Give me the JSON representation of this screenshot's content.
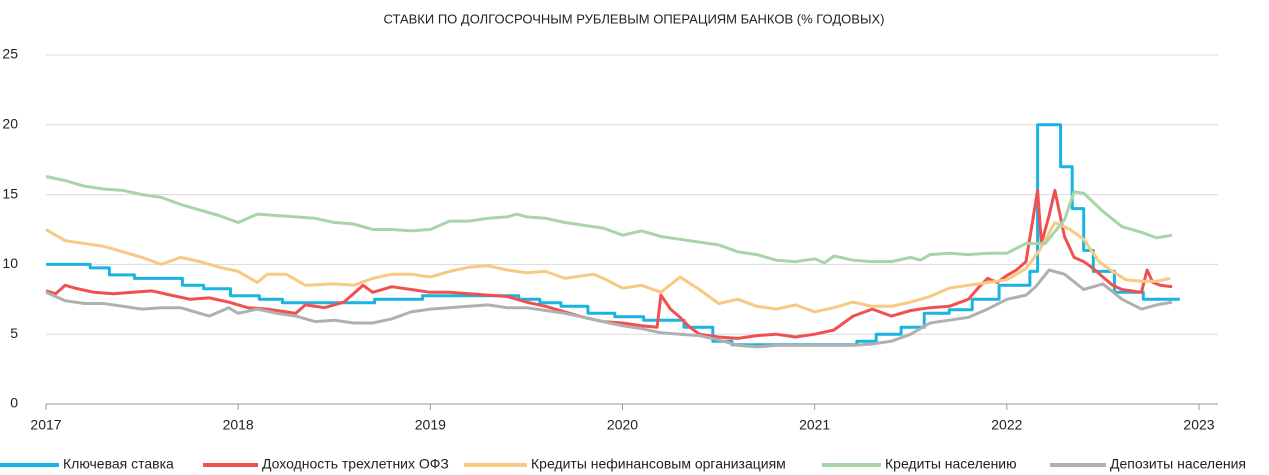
{
  "chart_data": {
    "type": "line",
    "title": "СТАВКИ ПО ДОЛГОСРОЧНЫМ РУБЛЕВЫМ ОПЕРАЦИЯМ БАНКОВ (% ГОДОВЫХ)",
    "xlim": [
      2017,
      2023
    ],
    "xticks": [
      2017,
      2018,
      2019,
      2020,
      2021,
      2022,
      2023
    ],
    "ylim": [
      0,
      25
    ],
    "yticks": [
      0,
      5,
      10,
      15,
      20,
      25
    ],
    "grid": true,
    "legend": "bottom",
    "series": [
      {
        "name": "Ключевая ставка",
        "color": "#1ab4e0",
        "x": [
          2017,
          2017.23,
          2017.23,
          2017.33,
          2017.33,
          2017.46,
          2017.46,
          2017.71,
          2017.71,
          2017.82,
          2017.82,
          2017.96,
          2017.96,
          2018.11,
          2018.11,
          2018.23,
          2018.23,
          2018.71,
          2018.71,
          2018.96,
          2018.96,
          2019.46,
          2019.46,
          2019.57,
          2019.57,
          2019.68,
          2019.68,
          2019.82,
          2019.82,
          2019.96,
          2019.96,
          2020.11,
          2020.11,
          2020.32,
          2020.32,
          2020.47,
          2020.47,
          2020.57,
          2020.57,
          2021.22,
          2021.22,
          2021.32,
          2021.32,
          2021.45,
          2021.45,
          2021.57,
          2021.57,
          2021.7,
          2021.7,
          2021.82,
          2021.82,
          2021.96,
          2021.96,
          2022.12,
          2022.12,
          2022.16,
          2022.16,
          2022.28,
          2022.28,
          2022.34,
          2022.34,
          2022.4,
          2022.4,
          2022.45,
          2022.45,
          2022.56,
          2022.56,
          2022.71,
          2022.71,
          2022.9
        ],
        "values": [
          10,
          10,
          9.75,
          9.75,
          9.25,
          9.25,
          9,
          9,
          8.5,
          8.5,
          8.25,
          8.25,
          7.75,
          7.75,
          7.5,
          7.5,
          7.25,
          7.25,
          7.5,
          7.5,
          7.75,
          7.75,
          7.5,
          7.5,
          7.25,
          7.25,
          7,
          7,
          6.5,
          6.5,
          6.25,
          6.25,
          6,
          6,
          5.5,
          5.5,
          4.5,
          4.5,
          4.25,
          4.25,
          4.5,
          4.5,
          5,
          5,
          5.5,
          5.5,
          6.5,
          6.5,
          6.75,
          6.75,
          7.5,
          7.5,
          8.5,
          8.5,
          9.5,
          9.5,
          20,
          20,
          17,
          17,
          14,
          14,
          11,
          11,
          9.5,
          9.5,
          8,
          8,
          7.5,
          7.5
        ]
      },
      {
        "name": "Доходность трехлетних ОФЗ",
        "color": "#f05050",
        "x": [
          2017,
          2017.05,
          2017.1,
          2017.15,
          2017.25,
          2017.35,
          2017.45,
          2017.55,
          2017.65,
          2017.75,
          2017.85,
          2017.95,
          2018.05,
          2018.15,
          2018.25,
          2018.3,
          2018.35,
          2018.45,
          2018.55,
          2018.65,
          2018.7,
          2018.8,
          2018.9,
          2019,
          2019.1,
          2019.2,
          2019.3,
          2019.4,
          2019.5,
          2019.6,
          2019.7,
          2019.8,
          2019.9,
          2020,
          2020.1,
          2020.18,
          2020.2,
          2020.25,
          2020.3,
          2020.35,
          2020.4,
          2020.5,
          2020.6,
          2020.7,
          2020.8,
          2020.9,
          2021,
          2021.1,
          2021.15,
          2021.2,
          2021.3,
          2021.4,
          2021.5,
          2021.6,
          2021.7,
          2021.8,
          2021.85,
          2021.9,
          2021.95,
          2022,
          2022.05,
          2022.1,
          2022.16,
          2022.18,
          2022.22,
          2022.25,
          2022.3,
          2022.35,
          2022.4,
          2022.45,
          2022.5,
          2022.55,
          2022.6,
          2022.7,
          2022.73,
          2022.76,
          2022.8,
          2022.86
        ],
        "values": [
          8.1,
          7.9,
          8.5,
          8.3,
          8,
          7.9,
          8,
          8.1,
          7.8,
          7.5,
          7.6,
          7.3,
          6.9,
          6.8,
          6.6,
          6.5,
          7.1,
          6.9,
          7.3,
          8.5,
          8,
          8.4,
          8.2,
          8,
          8,
          7.9,
          7.8,
          7.7,
          7.3,
          7,
          6.6,
          6.2,
          5.9,
          5.8,
          5.6,
          5.5,
          7.8,
          6.8,
          6.2,
          5.5,
          5,
          4.8,
          4.7,
          4.9,
          5,
          4.8,
          5,
          5.3,
          5.8,
          6.3,
          6.8,
          6.3,
          6.7,
          6.9,
          7,
          7.5,
          8.3,
          9,
          8.7,
          9.2,
          9.6,
          10.2,
          15.3,
          11.5,
          13.5,
          15.3,
          12,
          10.5,
          10.2,
          9.7,
          9.1,
          8.5,
          8.2,
          8,
          9.6,
          8.7,
          8.5,
          8.4
        ]
      },
      {
        "name": "Кредиты нефинансовым организациям",
        "color": "#f9c882",
        "x": [
          2017,
          2017.1,
          2017.3,
          2017.5,
          2017.6,
          2017.7,
          2017.8,
          2017.9,
          2018,
          2018.1,
          2018.15,
          2018.25,
          2018.35,
          2018.5,
          2018.6,
          2018.7,
          2018.8,
          2018.9,
          2019,
          2019.1,
          2019.2,
          2019.3,
          2019.4,
          2019.5,
          2019.6,
          2019.7,
          2019.85,
          2019.9,
          2020,
          2020.1,
          2020.2,
          2020.3,
          2020.4,
          2020.5,
          2020.6,
          2020.7,
          2020.8,
          2020.9,
          2021,
          2021.1,
          2021.2,
          2021.3,
          2021.4,
          2021.5,
          2021.6,
          2021.7,
          2021.8,
          2021.9,
          2022,
          2022.1,
          2022.17,
          2022.25,
          2022.33,
          2022.4,
          2022.48,
          2022.55,
          2022.62,
          2022.7,
          2022.78,
          2022.85
        ],
        "values": [
          12.5,
          11.7,
          11.3,
          10.5,
          10,
          10.5,
          10.2,
          9.8,
          9.5,
          8.7,
          9.3,
          9.3,
          8.5,
          8.6,
          8.5,
          9,
          9.3,
          9.3,
          9.1,
          9.5,
          9.8,
          9.9,
          9.6,
          9.4,
          9.5,
          9,
          9.3,
          9,
          8.3,
          8.5,
          8,
          9.1,
          8.2,
          7.2,
          7.5,
          7,
          6.8,
          7.1,
          6.6,
          6.9,
          7.3,
          7,
          7,
          7.3,
          7.7,
          8.3,
          8.5,
          8.7,
          8.9,
          9.7,
          11,
          13,
          12.5,
          11.8,
          10.2,
          9.5,
          8.9,
          8.8,
          8.8,
          9
        ]
      },
      {
        "name": "Кредиты населению",
        "color": "#a8d5a8",
        "x": [
          2017,
          2017.1,
          2017.2,
          2017.3,
          2017.4,
          2017.5,
          2017.6,
          2017.7,
          2017.8,
          2017.9,
          2018,
          2018.1,
          2018.2,
          2018.3,
          2018.4,
          2018.5,
          2018.6,
          2018.7,
          2018.8,
          2018.9,
          2019,
          2019.1,
          2019.2,
          2019.3,
          2019.4,
          2019.45,
          2019.5,
          2019.6,
          2019.7,
          2019.8,
          2019.9,
          2020,
          2020.1,
          2020.2,
          2020.3,
          2020.4,
          2020.5,
          2020.6,
          2020.7,
          2020.8,
          2020.9,
          2021,
          2021.05,
          2021.1,
          2021.2,
          2021.3,
          2021.4,
          2021.5,
          2021.55,
          2021.6,
          2021.7,
          2021.8,
          2021.9,
          2022,
          2022.1,
          2022.2,
          2022.3,
          2022.35,
          2022.4,
          2022.5,
          2022.6,
          2022.7,
          2022.78,
          2022.86
        ],
        "values": [
          16.3,
          16,
          15.6,
          15.4,
          15.3,
          15,
          14.8,
          14.3,
          13.9,
          13.5,
          13,
          13.6,
          13.5,
          13.4,
          13.3,
          13,
          12.9,
          12.5,
          12.5,
          12.4,
          12.5,
          13.1,
          13.1,
          13.3,
          13.4,
          13.6,
          13.4,
          13.3,
          13,
          12.8,
          12.6,
          12.1,
          12.4,
          12,
          11.8,
          11.6,
          11.4,
          10.9,
          10.7,
          10.3,
          10.2,
          10.4,
          10.1,
          10.6,
          10.3,
          10.2,
          10.2,
          10.5,
          10.3,
          10.7,
          10.8,
          10.7,
          10.8,
          10.8,
          11.5,
          11.5,
          13.2,
          15.2,
          15.1,
          13.8,
          12.7,
          12.3,
          11.9,
          12.1
        ]
      },
      {
        "name": "Депозиты населения",
        "color": "#b0b0b0",
        "x": [
          2017,
          2017.1,
          2017.2,
          2017.3,
          2017.4,
          2017.5,
          2017.6,
          2017.7,
          2017.8,
          2017.85,
          2017.95,
          2018,
          2018.1,
          2018.2,
          2018.3,
          2018.4,
          2018.5,
          2018.6,
          2018.7,
          2018.8,
          2018.9,
          2019,
          2019.1,
          2019.2,
          2019.3,
          2019.4,
          2019.5,
          2019.6,
          2019.7,
          2019.8,
          2019.9,
          2020,
          2020.1,
          2020.2,
          2020.3,
          2020.4,
          2020.5,
          2020.6,
          2020.7,
          2020.8,
          2020.9,
          2021,
          2021.1,
          2021.2,
          2021.3,
          2021.4,
          2021.5,
          2021.6,
          2021.7,
          2021.8,
          2021.9,
          2022,
          2022.1,
          2022.15,
          2022.22,
          2022.3,
          2022.4,
          2022.5,
          2022.6,
          2022.7,
          2022.78,
          2022.86
        ],
        "values": [
          8,
          7.4,
          7.2,
          7.2,
          7,
          6.8,
          6.9,
          6.9,
          6.5,
          6.3,
          6.9,
          6.5,
          6.8,
          6.5,
          6.3,
          5.9,
          6,
          5.8,
          5.8,
          6.1,
          6.6,
          6.8,
          6.9,
          7,
          7.1,
          6.9,
          6.9,
          6.7,
          6.5,
          6.2,
          5.9,
          5.6,
          5.4,
          5.1,
          5,
          4.9,
          4.6,
          4.2,
          4.1,
          4.2,
          4.2,
          4.2,
          4.2,
          4.2,
          4.3,
          4.5,
          5,
          5.8,
          6,
          6.2,
          6.8,
          7.5,
          7.8,
          8.4,
          9.6,
          9.3,
          8.2,
          8.6,
          7.5,
          6.8,
          7.1,
          7.3
        ]
      }
    ]
  }
}
